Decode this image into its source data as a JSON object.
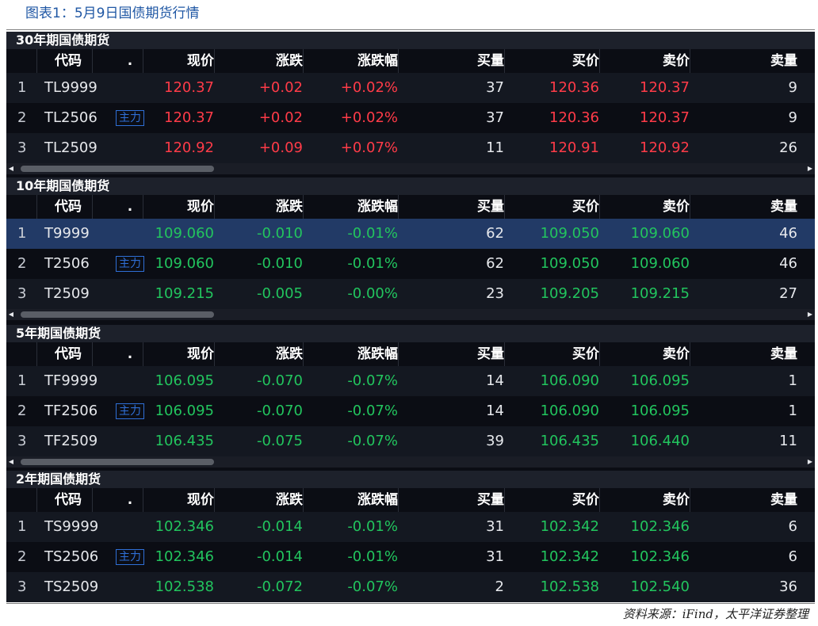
{
  "figure_title": "图表1：5月9日国债期货行情",
  "source": "资料来源：iFind，太平洋证券整理",
  "colors": {
    "up": "#ff3b48",
    "down": "#22c55e",
    "tag": "#2f6fd6",
    "selected_row": "#223a66"
  },
  "columns": {
    "code": "代码",
    "dot": ".",
    "price": "现价",
    "change": "涨跌",
    "pct": "涨跌幅",
    "buy_vol": "买量",
    "bid": "买价",
    "ask": "卖价",
    "sell_vol": "卖量"
  },
  "sections": [
    {
      "title": "30年期国债期货",
      "rows": [
        {
          "idx": "1",
          "code": "TL9999",
          "tag": "",
          "price": "120.37",
          "change": "+0.02",
          "pct": "+0.02%",
          "buy_vol": "37",
          "bid": "120.36",
          "ask": "120.37",
          "sell_vol": "9"
        },
        {
          "idx": "2",
          "code": "TL2506",
          "tag": "主力",
          "price": "120.37",
          "change": "+0.02",
          "pct": "+0.02%",
          "buy_vol": "37",
          "bid": "120.36",
          "ask": "120.37",
          "sell_vol": "9"
        },
        {
          "idx": "3",
          "code": "TL2509",
          "tag": "",
          "price": "120.92",
          "change": "+0.09",
          "pct": "+0.07%",
          "buy_vol": "11",
          "bid": "120.91",
          "ask": "120.92",
          "sell_vol": "26"
        }
      ]
    },
    {
      "title": "10年期国债期货",
      "rows": [
        {
          "idx": "1",
          "code": "T9999",
          "tag": "",
          "price": "109.060",
          "change": "-0.010",
          "pct": "-0.01%",
          "buy_vol": "62",
          "bid": "109.050",
          "ask": "109.060",
          "sell_vol": "46"
        },
        {
          "idx": "2",
          "code": "T2506",
          "tag": "主力",
          "price": "109.060",
          "change": "-0.010",
          "pct": "-0.01%",
          "buy_vol": "62",
          "bid": "109.050",
          "ask": "109.060",
          "sell_vol": "46"
        },
        {
          "idx": "3",
          "code": "T2509",
          "tag": "",
          "price": "109.215",
          "change": "-0.005",
          "pct": "-0.00%",
          "buy_vol": "23",
          "bid": "109.205",
          "ask": "109.215",
          "sell_vol": "27"
        }
      ]
    },
    {
      "title": "5年期国债期货",
      "rows": [
        {
          "idx": "1",
          "code": "TF9999",
          "tag": "",
          "price": "106.095",
          "change": "-0.070",
          "pct": "-0.07%",
          "buy_vol": "14",
          "bid": "106.090",
          "ask": "106.095",
          "sell_vol": "1"
        },
        {
          "idx": "2",
          "code": "TF2506",
          "tag": "主力",
          "price": "106.095",
          "change": "-0.070",
          "pct": "-0.07%",
          "buy_vol": "14",
          "bid": "106.090",
          "ask": "106.095",
          "sell_vol": "1"
        },
        {
          "idx": "3",
          "code": "TF2509",
          "tag": "",
          "price": "106.435",
          "change": "-0.075",
          "pct": "-0.07%",
          "buy_vol": "39",
          "bid": "106.435",
          "ask": "106.440",
          "sell_vol": "11"
        }
      ]
    },
    {
      "title": "2年期国债期货",
      "rows": [
        {
          "idx": "1",
          "code": "TS9999",
          "tag": "",
          "price": "102.346",
          "change": "-0.014",
          "pct": "-0.01%",
          "buy_vol": "31",
          "bid": "102.342",
          "ask": "102.346",
          "sell_vol": "6"
        },
        {
          "idx": "2",
          "code": "TS2506",
          "tag": "主力",
          "price": "102.346",
          "change": "-0.014",
          "pct": "-0.01%",
          "buy_vol": "31",
          "bid": "102.342",
          "ask": "102.346",
          "sell_vol": "6"
        },
        {
          "idx": "3",
          "code": "TS2509",
          "tag": "",
          "price": "102.538",
          "change": "-0.072",
          "pct": "-0.07%",
          "buy_vol": "2",
          "bid": "102.538",
          "ask": "102.540",
          "sell_vol": "36"
        }
      ]
    }
  ]
}
